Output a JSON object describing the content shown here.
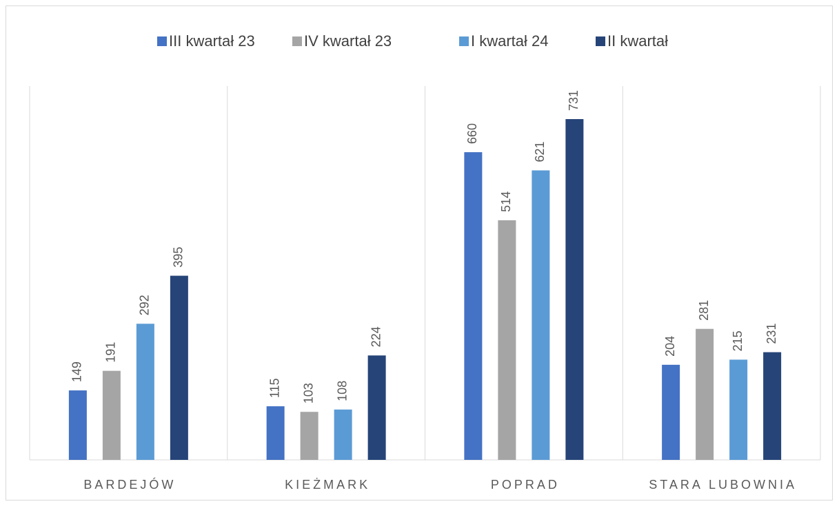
{
  "chart_data": {
    "type": "bar",
    "categories": [
      "BARDEJÓW",
      "KIEŻMARK",
      "POPRAD",
      "STARA LUBOWNIA"
    ],
    "series": [
      {
        "name": "III kwartał 23",
        "color": "#4472c4",
        "values": [
          149,
          115,
          660,
          204
        ]
      },
      {
        "name": "IV kwartał 23",
        "color": "#a5a5a5",
        "values": [
          191,
          103,
          514,
          281
        ]
      },
      {
        "name": "I kwartał 24",
        "color": "#5b9bd5",
        "values": [
          292,
          108,
          621,
          215
        ]
      },
      {
        "name": "II kwartał",
        "color": "#264478",
        "values": [
          395,
          224,
          731,
          231
        ]
      }
    ],
    "legend": "top"
  }
}
